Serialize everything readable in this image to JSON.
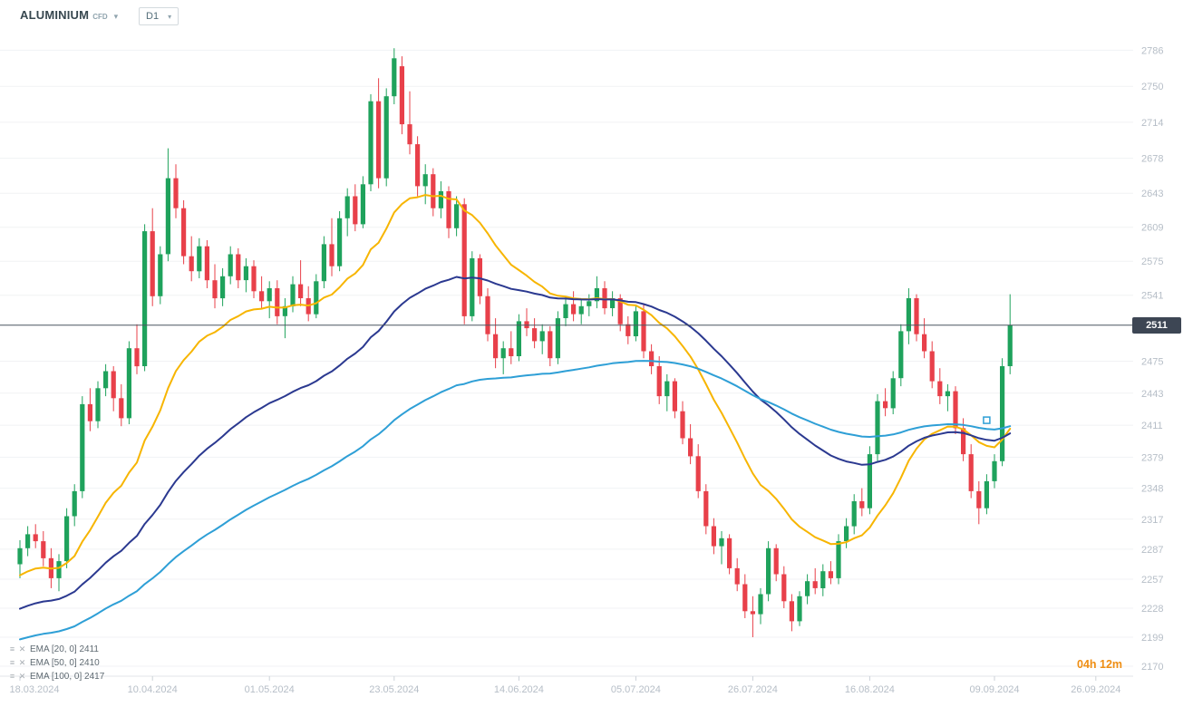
{
  "header": {
    "symbol": "ALUMINIUM",
    "instrument_type": "CFD",
    "timeframe": "D1"
  },
  "legend": [
    {
      "label": "EMA [20, 0]  2411"
    },
    {
      "label": "EMA [50, 0]  2410"
    },
    {
      "label": "EMA [100, 0]  2417"
    }
  ],
  "countdown": "04h 12m",
  "price_axis": {
    "current_price_label": "2511"
  },
  "chart_data": {
    "type": "candlestick",
    "symbol": "ALUMINIUM",
    "timeframe": "D1",
    "current_price": 2511,
    "ylim": [
      2160,
      2800
    ],
    "y_ticks": [
      2786,
      2750,
      2714,
      2678,
      2643,
      2609,
      2575,
      2541,
      2475,
      2443,
      2411,
      2379,
      2348,
      2317,
      2287,
      2257,
      2228,
      2199,
      2170
    ],
    "x_labels": [
      {
        "text": "18.03.2024",
        "i": 0
      },
      {
        "text": "10.04.2024",
        "i": 17
      },
      {
        "text": "01.05.2024",
        "i": 32
      },
      {
        "text": "23.05.2024",
        "i": 48
      },
      {
        "text": "14.06.2024",
        "i": 64
      },
      {
        "text": "05.07.2024",
        "i": 79
      },
      {
        "text": "26.07.2024",
        "i": 94
      },
      {
        "text": "16.08.2024",
        "i": 109
      },
      {
        "text": "09.09.2024",
        "i": 125
      },
      {
        "text": "26.09.2024",
        "i": 138
      }
    ],
    "colors": {
      "up": "#1fa25c",
      "down": "#e8404a",
      "price_line": "#4a5560",
      "ema20": "#f7b500",
      "ema50": "#2b3990",
      "ema100": "#2e9fd6"
    },
    "emas": [
      {
        "period": 20,
        "seed": 2258,
        "color": "#f7b500",
        "value": 2411
      },
      {
        "period": 50,
        "seed": 2225,
        "color": "#2b3990",
        "value": 2410
      },
      {
        "period": 100,
        "seed": 2195,
        "color": "#2e9fd6",
        "value": 2417
      }
    ],
    "marker": {
      "i": 124,
      "price": 2416
    },
    "candles": [
      [
        2272,
        2296,
        2258,
        2288
      ],
      [
        2288,
        2310,
        2280,
        2302
      ],
      [
        2302,
        2312,
        2288,
        2295
      ],
      [
        2295,
        2305,
        2270,
        2278
      ],
      [
        2278,
        2288,
        2248,
        2258
      ],
      [
        2258,
        2282,
        2245,
        2275
      ],
      [
        2275,
        2328,
        2268,
        2320
      ],
      [
        2320,
        2352,
        2310,
        2345
      ],
      [
        2345,
        2440,
        2338,
        2432
      ],
      [
        2432,
        2448,
        2405,
        2415
      ],
      [
        2415,
        2455,
        2408,
        2448
      ],
      [
        2448,
        2472,
        2440,
        2465
      ],
      [
        2465,
        2470,
        2425,
        2438
      ],
      [
        2438,
        2452,
        2410,
        2418
      ],
      [
        2418,
        2495,
        2412,
        2488
      ],
      [
        2488,
        2512,
        2462,
        2470
      ],
      [
        2470,
        2612,
        2465,
        2605
      ],
      [
        2605,
        2628,
        2530,
        2540
      ],
      [
        2540,
        2590,
        2532,
        2582
      ],
      [
        2582,
        2688,
        2575,
        2658
      ],
      [
        2658,
        2672,
        2618,
        2628
      ],
      [
        2628,
        2636,
        2572,
        2580
      ],
      [
        2580,
        2600,
        2555,
        2565
      ],
      [
        2565,
        2598,
        2558,
        2590
      ],
      [
        2590,
        2596,
        2548,
        2556
      ],
      [
        2556,
        2572,
        2528,
        2538
      ],
      [
        2538,
        2568,
        2530,
        2560
      ],
      [
        2560,
        2590,
        2552,
        2582
      ],
      [
        2582,
        2588,
        2548,
        2556
      ],
      [
        2556,
        2578,
        2544,
        2570
      ],
      [
        2570,
        2576,
        2538,
        2545
      ],
      [
        2545,
        2560,
        2528,
        2535
      ],
      [
        2535,
        2555,
        2518,
        2548
      ],
      [
        2548,
        2556,
        2512,
        2520
      ],
      [
        2520,
        2538,
        2498,
        2530
      ],
      [
        2530,
        2560,
        2524,
        2552
      ],
      [
        2552,
        2576,
        2530,
        2538
      ],
      [
        2538,
        2550,
        2515,
        2522
      ],
      [
        2522,
        2562,
        2518,
        2555
      ],
      [
        2555,
        2600,
        2548,
        2592
      ],
      [
        2592,
        2618,
        2560,
        2570
      ],
      [
        2570,
        2625,
        2565,
        2618
      ],
      [
        2618,
        2648,
        2600,
        2640
      ],
      [
        2640,
        2652,
        2605,
        2612
      ],
      [
        2612,
        2660,
        2608,
        2652
      ],
      [
        2652,
        2742,
        2645,
        2735
      ],
      [
        2735,
        2758,
        2648,
        2658
      ],
      [
        2658,
        2748,
        2650,
        2740
      ],
      [
        2740,
        2788,
        2732,
        2778
      ],
      [
        2770,
        2780,
        2702,
        2712
      ],
      [
        2712,
        2745,
        2682,
        2692
      ],
      [
        2692,
        2700,
        2640,
        2650
      ],
      [
        2650,
        2672,
        2632,
        2662
      ],
      [
        2662,
        2668,
        2620,
        2628
      ],
      [
        2628,
        2655,
        2618,
        2645
      ],
      [
        2645,
        2650,
        2598,
        2608
      ],
      [
        2608,
        2640,
        2600,
        2632
      ],
      [
        2632,
        2638,
        2512,
        2520
      ],
      [
        2520,
        2585,
        2515,
        2578
      ],
      [
        2578,
        2582,
        2532,
        2540
      ],
      [
        2540,
        2548,
        2495,
        2502
      ],
      [
        2502,
        2518,
        2468,
        2478
      ],
      [
        2478,
        2495,
        2462,
        2488
      ],
      [
        2488,
        2505,
        2472,
        2480
      ],
      [
        2480,
        2522,
        2475,
        2515
      ],
      [
        2515,
        2528,
        2500,
        2508
      ],
      [
        2508,
        2518,
        2488,
        2495
      ],
      [
        2495,
        2512,
        2482,
        2505
      ],
      [
        2505,
        2510,
        2470,
        2478
      ],
      [
        2478,
        2525,
        2472,
        2518
      ],
      [
        2518,
        2540,
        2510,
        2532
      ],
      [
        2532,
        2545,
        2515,
        2522
      ],
      [
        2522,
        2538,
        2512,
        2530
      ],
      [
        2530,
        2542,
        2520,
        2535
      ],
      [
        2535,
        2560,
        2528,
        2548
      ],
      [
        2548,
        2555,
        2522,
        2528
      ],
      [
        2528,
        2545,
        2520,
        2538
      ],
      [
        2538,
        2542,
        2505,
        2512
      ],
      [
        2512,
        2520,
        2492,
        2500
      ],
      [
        2500,
        2530,
        2495,
        2525
      ],
      [
        2525,
        2532,
        2478,
        2485
      ],
      [
        2485,
        2492,
        2462,
        2470
      ],
      [
        2470,
        2480,
        2432,
        2440
      ],
      [
        2440,
        2462,
        2425,
        2455
      ],
      [
        2455,
        2458,
        2418,
        2425
      ],
      [
        2425,
        2435,
        2392,
        2398
      ],
      [
        2398,
        2412,
        2372,
        2380
      ],
      [
        2380,
        2392,
        2338,
        2345
      ],
      [
        2345,
        2352,
        2302,
        2310
      ],
      [
        2310,
        2318,
        2282,
        2290
      ],
      [
        2290,
        2305,
        2272,
        2298
      ],
      [
        2298,
        2302,
        2262,
        2268
      ],
      [
        2268,
        2278,
        2245,
        2252
      ],
      [
        2252,
        2262,
        2218,
        2225
      ],
      [
        2225,
        2240,
        2199,
        2222
      ],
      [
        2222,
        2248,
        2212,
        2242
      ],
      [
        2242,
        2295,
        2235,
        2288
      ],
      [
        2288,
        2292,
        2255,
        2262
      ],
      [
        2262,
        2270,
        2228,
        2235
      ],
      [
        2235,
        2242,
        2205,
        2215
      ],
      [
        2215,
        2245,
        2210,
        2240
      ],
      [
        2240,
        2262,
        2232,
        2255
      ],
      [
        2255,
        2268,
        2242,
        2248
      ],
      [
        2248,
        2272,
        2240,
        2265
      ],
      [
        2265,
        2275,
        2252,
        2258
      ],
      [
        2258,
        2302,
        2252,
        2295
      ],
      [
        2295,
        2318,
        2288,
        2310
      ],
      [
        2310,
        2342,
        2302,
        2335
      ],
      [
        2335,
        2348,
        2320,
        2328
      ],
      [
        2328,
        2390,
        2322,
        2382
      ],
      [
        2382,
        2442,
        2375,
        2435
      ],
      [
        2435,
        2448,
        2420,
        2428
      ],
      [
        2428,
        2465,
        2422,
        2458
      ],
      [
        2458,
        2512,
        2450,
        2505
      ],
      [
        2505,
        2548,
        2492,
        2538
      ],
      [
        2538,
        2542,
        2495,
        2502
      ],
      [
        2502,
        2518,
        2478,
        2485
      ],
      [
        2485,
        2495,
        2448,
        2455
      ],
      [
        2455,
        2468,
        2432,
        2440
      ],
      [
        2440,
        2452,
        2425,
        2445
      ],
      [
        2445,
        2450,
        2402,
        2408
      ],
      [
        2408,
        2418,
        2375,
        2382
      ],
      [
        2382,
        2392,
        2338,
        2345
      ],
      [
        2345,
        2355,
        2312,
        2328
      ],
      [
        2328,
        2362,
        2322,
        2355
      ],
      [
        2355,
        2382,
        2348,
        2375
      ],
      [
        2375,
        2478,
        2370,
        2470
      ],
      [
        2470,
        2542,
        2462,
        2511
      ]
    ]
  }
}
